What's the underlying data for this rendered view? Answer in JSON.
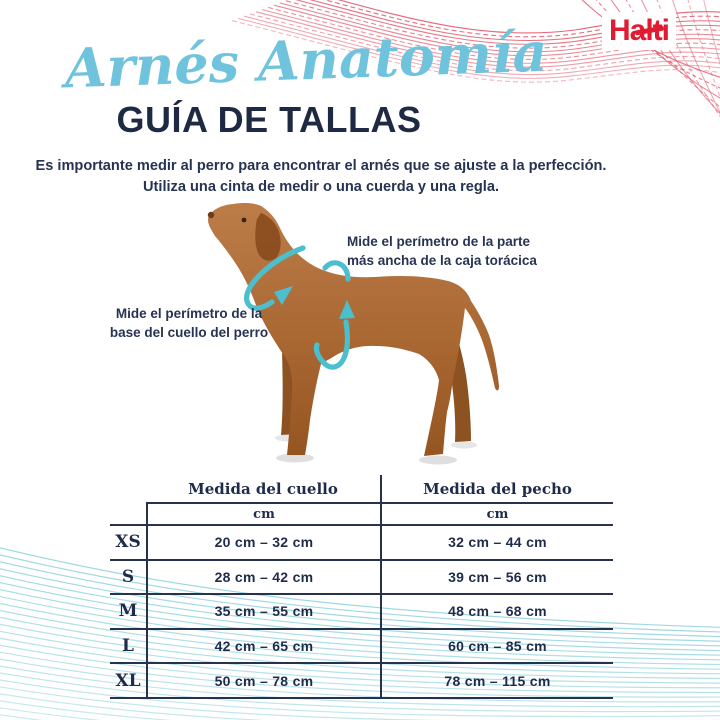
{
  "brand": {
    "logo_text": "Halti",
    "logo_color": "#e11b31"
  },
  "header": {
    "script_title": "Arnés Anatomía",
    "main_title": "GUÍA DE TALLAS",
    "intro_line1": "Es importante medir al perro para encontrar el arnés que se ajuste a la perfección.",
    "intro_line2": "Utiliza una cinta de medir o una cuerda y una regla."
  },
  "diagram": {
    "neck_note_line1": "Mide el perímetro de la",
    "neck_note_line2": "base del cuello del perro",
    "chest_note_line1": "Mide el perímetro de la parte",
    "chest_note_line2": "más ancha de la caja torácica",
    "arrow_color": "#4bbfce",
    "dog_color": "#aa6a33"
  },
  "size_table": {
    "col1_header": "Medida del cuello",
    "col2_header": "Medida del pecho",
    "unit_label": "cm",
    "rows": [
      {
        "size": "XS",
        "neck": "20 cm – 32 cm",
        "chest": "32 cm – 44 cm"
      },
      {
        "size": "S",
        "neck": "28 cm – 42 cm",
        "chest": "39 cm – 56 cm"
      },
      {
        "size": "M",
        "neck": "35 cm – 55 cm",
        "chest": "48 cm – 68 cm"
      },
      {
        "size": "L",
        "neck": "42 cm – 65 cm",
        "chest": "60 cm – 85 cm"
      },
      {
        "size": "XL",
        "neck": "50 cm – 78 cm",
        "chest": "78 cm – 115 cm"
      }
    ]
  },
  "colors": {
    "navy_text": "#223052",
    "title_blue": "#6fc3dc",
    "wave_red": "#e2556a",
    "wave_teal": "#8ed2db",
    "table_line": "#27324f"
  }
}
